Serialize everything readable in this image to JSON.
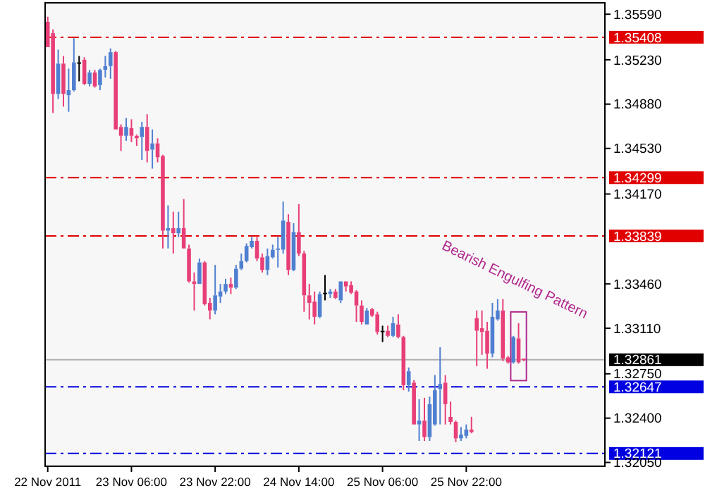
{
  "chart_data": {
    "type": "candlestick",
    "categories": [
      "22 Nov 2011",
      null,
      null,
      null,
      null,
      null,
      null,
      null,
      null,
      null,
      null,
      null,
      null,
      null,
      null,
      null,
      "23 Nov 06:00",
      null,
      null,
      null,
      null,
      null,
      null,
      null,
      null,
      null,
      null,
      null,
      null,
      null,
      null,
      null,
      "23 Nov 22:00",
      null,
      null,
      null,
      null,
      null,
      null,
      null,
      null,
      null,
      null,
      null,
      null,
      null,
      null,
      null,
      "24 Nov 14:00",
      null,
      null,
      null,
      null,
      null,
      null,
      null,
      null,
      null,
      null,
      null,
      null,
      null,
      null,
      null,
      "25 Nov 06:00",
      null,
      null,
      null,
      null,
      null,
      null,
      null,
      null,
      null,
      null,
      null,
      null,
      null,
      null,
      null,
      "25 Nov 22:00",
      null,
      null,
      null,
      null,
      null,
      null,
      null,
      null,
      null,
      null,
      null,
      null,
      null,
      null,
      null,
      null,
      null,
      null,
      null,
      null,
      null,
      null,
      null,
      null,
      null,
      null
    ],
    "ohlc": [
      [
        1.3553,
        1.3557,
        1.3533,
        1.3533
      ],
      [
        1.3544,
        1.3547,
        1.3481,
        1.3496
      ],
      [
        1.3496,
        1.3531,
        1.3492,
        1.352
      ],
      [
        1.352,
        1.3526,
        1.3486,
        1.3496
      ],
      [
        1.3495,
        1.3516,
        1.3482,
        1.3499
      ],
      [
        1.3499,
        1.354,
        1.3498,
        1.3521
      ],
      [
        1.3521,
        1.3526,
        1.3506,
        1.3521
      ],
      [
        1.3523,
        1.3525,
        1.3503,
        1.3504
      ],
      [
        1.3504,
        1.3515,
        1.3502,
        1.3513
      ],
      [
        1.3513,
        1.3515,
        1.3501,
        1.3502
      ],
      [
        1.3503,
        1.3516,
        1.3499,
        1.3515
      ],
      [
        1.3515,
        1.3526,
        1.3509,
        1.3518
      ],
      [
        1.3518,
        1.3532,
        1.3508,
        1.3529
      ],
      [
        1.3529,
        1.353,
        1.3468,
        1.3468
      ],
      [
        1.347,
        1.3472,
        1.3451,
        1.3463
      ],
      [
        1.3463,
        1.3477,
        1.3459,
        1.347
      ],
      [
        1.3469,
        1.3476,
        1.3458,
        1.3463
      ],
      [
        1.3463,
        1.3464,
        1.3455,
        1.3461
      ],
      [
        1.3462,
        1.3474,
        1.3444,
        1.347
      ],
      [
        1.347,
        1.348,
        1.3442,
        1.3451
      ],
      [
        1.3452,
        1.3468,
        1.3437,
        1.3457
      ],
      [
        1.3457,
        1.3461,
        1.3442,
        1.3446
      ],
      [
        1.3447,
        1.3448,
        1.3374,
        1.3388
      ],
      [
        1.3388,
        1.3408,
        1.3374,
        1.339
      ],
      [
        1.339,
        1.3403,
        1.337,
        1.3386
      ],
      [
        1.3386,
        1.3403,
        1.3383,
        1.339
      ],
      [
        1.339,
        1.3413,
        1.3374,
        1.3374
      ],
      [
        1.3374,
        1.3377,
        1.3347,
        1.3348
      ],
      [
        1.3348,
        1.3355,
        1.3325,
        1.3346
      ],
      [
        1.3346,
        1.3366,
        1.3346,
        1.3363
      ],
      [
        1.3363,
        1.3364,
        1.3329,
        1.333
      ],
      [
        1.3331,
        1.3335,
        1.3318,
        1.3325
      ],
      [
        1.3325,
        1.3361,
        1.3322,
        1.3337
      ],
      [
        1.3336,
        1.3346,
        1.3331,
        1.334
      ],
      [
        1.334,
        1.335,
        1.3338,
        1.3346
      ],
      [
        1.3346,
        1.3351,
        1.3338,
        1.3343
      ],
      [
        1.3343,
        1.3361,
        1.3342,
        1.3358
      ],
      [
        1.3358,
        1.337,
        1.3357,
        1.3364
      ],
      [
        1.3364,
        1.3378,
        1.3363,
        1.3376
      ],
      [
        1.3375,
        1.3383,
        1.3374,
        1.338
      ],
      [
        1.338,
        1.3383,
        1.3364,
        1.3366
      ],
      [
        1.3367,
        1.337,
        1.3355,
        1.3357
      ],
      [
        1.3357,
        1.3374,
        1.3353,
        1.3368
      ],
      [
        1.3367,
        1.3377,
        1.3366,
        1.3373
      ],
      [
        1.3373,
        1.3383,
        1.3359,
        1.3374
      ],
      [
        1.3373,
        1.3411,
        1.337,
        1.3396
      ],
      [
        1.3395,
        1.3401,
        1.3353,
        1.3357
      ],
      [
        1.3357,
        1.3394,
        1.3356,
        1.3387
      ],
      [
        1.3387,
        1.3409,
        1.3368,
        1.337
      ],
      [
        1.337,
        1.3372,
        1.3324,
        1.3337
      ],
      [
        1.3337,
        1.3346,
        1.3318,
        1.3331
      ],
      [
        1.3332,
        1.334,
        1.3314,
        1.332
      ],
      [
        1.332,
        1.334,
        1.3319,
        1.3338
      ],
      [
        1.3339,
        1.3353,
        1.3333,
        1.3339
      ],
      [
        1.3338,
        1.3342,
        1.3335,
        1.334
      ],
      [
        1.334,
        1.3342,
        1.3334,
        1.3335
      ],
      [
        1.3333,
        1.3348,
        1.3331,
        1.3348
      ],
      [
        1.3348,
        1.3348,
        1.334,
        1.3344
      ],
      [
        1.3345,
        1.3348,
        1.3338,
        1.3339
      ],
      [
        1.334,
        1.3341,
        1.3316,
        1.3329
      ],
      [
        1.3329,
        1.3333,
        1.3314,
        1.3316
      ],
      [
        1.3314,
        1.3327,
        1.3314,
        1.3325
      ],
      [
        1.3326,
        1.3327,
        1.332,
        1.3321
      ],
      [
        1.3322,
        1.3324,
        1.3306,
        1.3308
      ],
      [
        1.3309,
        1.3313,
        1.33,
        1.3309
      ],
      [
        1.3309,
        1.3313,
        1.3304,
        1.3305
      ],
      [
        1.3305,
        1.332,
        1.3304,
        1.3315
      ],
      [
        1.3314,
        1.3322,
        1.3303,
        1.3304
      ],
      [
        1.3304,
        1.3305,
        1.3262,
        1.3266
      ],
      [
        1.3266,
        1.328,
        1.3261,
        1.3277
      ],
      [
        1.3268,
        1.327,
        1.3235,
        1.3235
      ],
      [
        1.3235,
        1.3255,
        1.3222,
        1.3238
      ],
      [
        1.3238,
        1.3256,
        1.3222,
        1.3225
      ],
      [
        1.3225,
        1.3257,
        1.3222,
        1.3251
      ],
      [
        1.3235,
        1.3274,
        1.3234,
        1.3262
      ],
      [
        1.3263,
        1.3296,
        1.3235,
        1.3267
      ],
      [
        1.3268,
        1.3274,
        1.3235,
        1.3251
      ],
      [
        1.3241,
        1.3253,
        1.3235,
        1.3237
      ],
      [
        1.3237,
        1.3238,
        1.3221,
        1.3224
      ],
      [
        1.3224,
        1.3233,
        1.3222,
        1.3227
      ],
      [
        1.3226,
        1.3235,
        1.3224,
        1.3231
      ],
      [
        1.3231,
        1.3241,
        1.3228,
        1.3229
      ],
      [
        1.3319,
        1.3325,
        1.3281,
        1.3309
      ],
      [
        1.3311,
        1.3325,
        1.329,
        1.3308
      ],
      [
        1.3309,
        1.3316,
        1.3279,
        1.3291
      ],
      [
        1.3291,
        1.3331,
        1.3288,
        1.332
      ],
      [
        1.3318,
        1.3334,
        1.3317,
        1.3325
      ],
      [
        1.3325,
        1.3334,
        1.3285,
        1.3287
      ],
      [
        1.3288,
        1.3289,
        1.3283,
        1.3284
      ],
      [
        1.3284,
        1.3305,
        1.3283,
        1.3304
      ],
      [
        1.3303,
        1.3315,
        1.3283,
        1.3284
      ],
      [
        1.3287,
        1.3287,
        1.3285,
        1.3286
      ],
      null,
      null,
      null,
      null,
      null,
      null,
      null,
      null,
      null,
      null,
      null,
      null,
      null,
      null,
      null
    ],
    "colors": [
      "#e83e78",
      "#e83e78",
      "#4f7fd0",
      "#e83e78",
      "#4f7fd0",
      "#4f7fd0",
      "#000000",
      "#e83e78",
      "#4f7fd0",
      "#e83e78",
      "#4f7fd0",
      "#4f7fd0",
      "#4f7fd0",
      "#e83e78",
      "#e83e78",
      "#4f7fd0",
      "#e83e78",
      "#e83e78",
      "#4f7fd0",
      "#e83e78",
      "#4f7fd0",
      "#e83e78",
      "#e83e78",
      "#4f7fd0",
      "#e83e78",
      "#4f7fd0",
      "#e83e78",
      "#e83e78",
      "#e83e78",
      "#4f7fd0",
      "#e83e78",
      "#e83e78",
      "#4f7fd0",
      "#4f7fd0",
      "#4f7fd0",
      "#e83e78",
      "#4f7fd0",
      "#4f7fd0",
      "#4f7fd0",
      "#4f7fd0",
      "#e83e78",
      "#e83e78",
      "#4f7fd0",
      "#4f7fd0",
      "#4f7fd0",
      "#4f7fd0",
      "#e83e78",
      "#4f7fd0",
      "#e83e78",
      "#e83e78",
      "#e83e78",
      "#e83e78",
      "#4f7fd0",
      "#000000",
      "#4f7fd0",
      "#e83e78",
      "#4f7fd0",
      "#e83e78",
      "#e83e78",
      "#e83e78",
      "#e83e78",
      "#4f7fd0",
      "#e83e78",
      "#e83e78",
      "#000000",
      "#e83e78",
      "#4f7fd0",
      "#e83e78",
      "#e83e78",
      "#4f7fd0",
      "#e83e78",
      "#4f7fd0",
      "#e83e78",
      "#4f7fd0",
      "#4f7fd0",
      "#4f7fd0",
      "#e83e78",
      "#e83e78",
      "#e83e78",
      "#4f7fd0",
      "#4f7fd0",
      "#e83e78",
      "#e83e78",
      "#e83e78",
      "#e83e78",
      "#4f7fd0",
      "#4f7fd0",
      "#e83e78",
      "#e83e78",
      "#4f7fd0",
      "#e83e78",
      "#e83e78",
      null,
      null,
      null,
      null,
      null,
      null,
      null,
      null,
      null,
      null,
      null,
      null,
      null,
      null,
      null
    ],
    "ylim": [
      1.3202,
      1.3568
    ],
    "yticks": [
      {
        "value": 1.3559,
        "label": "1.35590"
      },
      {
        "value": 1.3523,
        "label": "1.35230"
      },
      {
        "value": 1.3488,
        "label": "1.34880"
      },
      {
        "value": 1.3453,
        "label": "1.34530"
      },
      {
        "value": 1.3417,
        "label": "1.34170"
      },
      {
        "value": 1.3346,
        "label": "1.33460"
      },
      {
        "value": 1.3311,
        "label": "1.33110"
      },
      {
        "value": 1.3275,
        "label": "1.32750"
      },
      {
        "value": 1.324,
        "label": "1.32400"
      },
      {
        "value": 1.3205,
        "label": "1.32050"
      }
    ],
    "ref_lines": [
      {
        "axis": "y",
        "value": 1.35408,
        "label": "1.35408",
        "color": "#e00000",
        "line_style": "dashed"
      },
      {
        "axis": "y",
        "value": 1.34299,
        "label": "1.34299",
        "color": "#e00000",
        "line_style": "dashed"
      },
      {
        "axis": "y",
        "value": 1.33839,
        "label": "1.33839",
        "color": "#e00000",
        "line_style": "dashed"
      },
      {
        "axis": "y",
        "value": 1.32861,
        "label": "1.32861",
        "color": "#b0b0b0",
        "line_style": "solid"
      },
      {
        "axis": "y",
        "value": 1.32647,
        "label": "1.32647",
        "color": "#0000e0",
        "line_style": "dashed"
      },
      {
        "axis": "y",
        "value": 1.32121,
        "label": "1.32121",
        "color": "#0000e0",
        "line_style": "dashed"
      }
    ],
    "annotations": [
      "Bearish Engulfing Pattern"
    ],
    "grid": false
  }
}
